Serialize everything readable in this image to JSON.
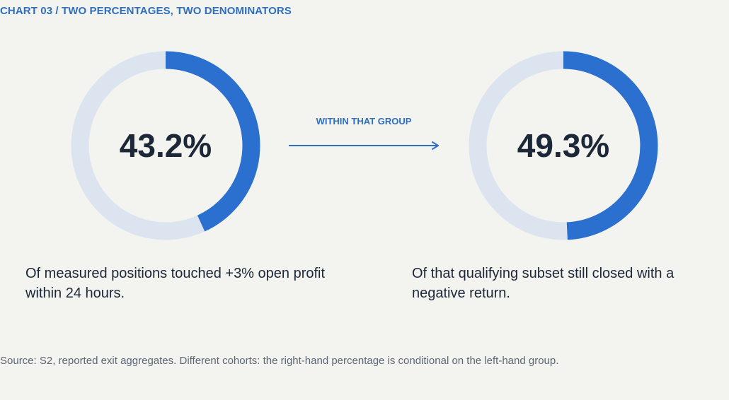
{
  "title": "CHART 03 / TWO PERCENTAGES, TWO DENOMINATORS",
  "colors": {
    "accent": "#2f6fbf",
    "ring_fill": "#2b6fcf",
    "ring_track": "#dce5ef",
    "text_dark": "#1c2738",
    "text_muted": "#5b6676",
    "background": "#f3f3f0"
  },
  "connector": {
    "label": "WITHIN THAT GROUP",
    "icon": "arrow-right-icon"
  },
  "chart_data": {
    "type": "pie",
    "charts": [
      {
        "value": 43.2,
        "label": "43.2%",
        "caption": "Of measured positions touched +3% open profit within 24 hours."
      },
      {
        "value": 49.3,
        "label": "49.3%",
        "caption": "Of that qualifying subset still closed with a negative return."
      }
    ]
  },
  "source": "Source: S2, reported exit aggregates. Different cohorts: the right-hand percentage is conditional on the left-hand group."
}
